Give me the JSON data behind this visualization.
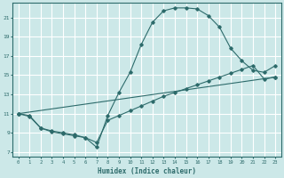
{
  "xlabel": "Humidex (Indice chaleur)",
  "bg_color": "#cce8e8",
  "grid_color": "#ffffff",
  "line_color": "#2d6b6b",
  "xlim": [
    -0.5,
    23.5
  ],
  "ylim": [
    6.5,
    22.5
  ],
  "xticks": [
    0,
    1,
    2,
    3,
    4,
    5,
    6,
    7,
    8,
    9,
    10,
    11,
    12,
    13,
    14,
    15,
    16,
    17,
    18,
    19,
    20,
    21,
    22,
    23
  ],
  "yticks": [
    7,
    9,
    11,
    13,
    15,
    17,
    19,
    21
  ],
  "line1_x": [
    0,
    1,
    2,
    3,
    4,
    5,
    6,
    7,
    8,
    9,
    10,
    11,
    12,
    13,
    14,
    15,
    16,
    17,
    18,
    19,
    20,
    21,
    22,
    23
  ],
  "line1_y": [
    11.0,
    10.7,
    9.5,
    9.2,
    9.0,
    8.8,
    8.5,
    7.5,
    10.8,
    13.2,
    15.3,
    18.2,
    20.5,
    21.7,
    22.0,
    22.0,
    21.9,
    21.2,
    20.0,
    17.8,
    16.5,
    15.5,
    15.3,
    16.0
  ],
  "line2_x": [
    0,
    1,
    2,
    3,
    4,
    5,
    6,
    7,
    8,
    9,
    10,
    11,
    12,
    13,
    14,
    15,
    16,
    17,
    18,
    19,
    20,
    21,
    22,
    23
  ],
  "line2_y": [
    11.0,
    10.8,
    9.5,
    9.1,
    8.9,
    8.7,
    8.5,
    8.0,
    10.3,
    10.8,
    11.3,
    11.8,
    12.3,
    12.8,
    13.2,
    13.6,
    14.0,
    14.4,
    14.8,
    15.2,
    15.6,
    16.0,
    14.6,
    14.8
  ],
  "line3_x": [
    0,
    23
  ],
  "line3_y": [
    11.0,
    14.8
  ]
}
